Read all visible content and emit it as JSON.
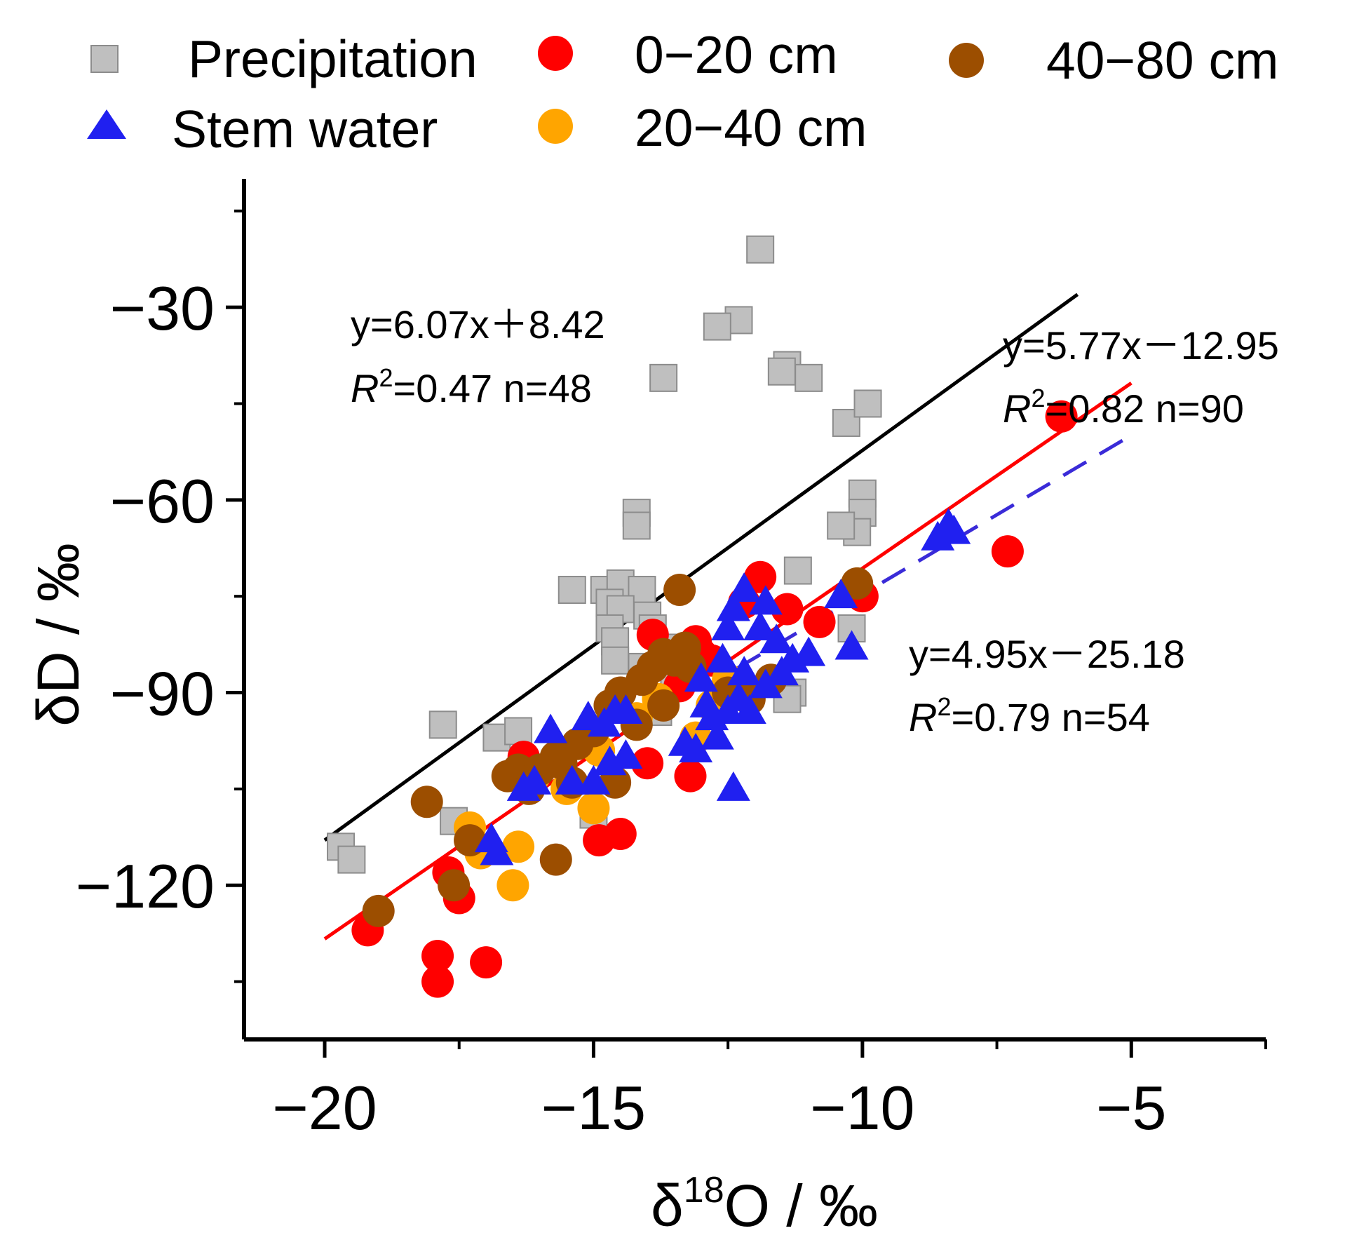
{
  "chart_data": {
    "type": "scatter",
    "xlabel": {
      "prefix": "δ",
      "sup": "18",
      "suffix": "O / ‰"
    },
    "ylabel": "δD / ‰",
    "xlim": [
      -21.5,
      -2.5
    ],
    "ylim": [
      -144,
      -10
    ],
    "x_ticks": [
      {
        "value": -20,
        "label": "−20"
      },
      {
        "value": -15,
        "label": "−15"
      },
      {
        "value": -10,
        "label": "−10"
      },
      {
        "value": -5,
        "label": "−5"
      }
    ],
    "y_ticks": [
      {
        "value": -30,
        "label": "−30"
      },
      {
        "value": -60,
        "label": "−60"
      },
      {
        "value": -90,
        "label": "−90"
      },
      {
        "value": -120,
        "label": "−120"
      }
    ],
    "legend": [
      {
        "label": "Precipitation",
        "marker": "square",
        "color": "#bfbfbf"
      },
      {
        "label": "0−20 cm",
        "marker": "circle",
        "color": "#ff0000"
      },
      {
        "label": "40−80 cm",
        "marker": "circle",
        "color": "#9c4e00"
      },
      {
        "label": "Stem water",
        "marker": "triangle",
        "color": "#2020f0"
      },
      {
        "label": "20−40 cm",
        "marker": "circle",
        "color": "#ffa500"
      }
    ],
    "series": [
      {
        "name": "Precipitation",
        "marker": "square",
        "color": "#bfbfbf",
        "points": [
          [
            -11.9,
            -21
          ],
          [
            -12.3,
            -32
          ],
          [
            -12.7,
            -33
          ],
          [
            -13.7,
            -41
          ],
          [
            -11.4,
            -39
          ],
          [
            -11.5,
            -40
          ],
          [
            -11.0,
            -41
          ],
          [
            -10.3,
            -48
          ],
          [
            -9.9,
            -45
          ],
          [
            -10.0,
            -59
          ],
          [
            -10.0,
            -62
          ],
          [
            -10.1,
            -65
          ],
          [
            -10.4,
            -64
          ],
          [
            -14.2,
            -62
          ],
          [
            -14.2,
            -64
          ],
          [
            -11.2,
            -71
          ],
          [
            -15.4,
            -74
          ],
          [
            -14.8,
            -74
          ],
          [
            -14.5,
            -73
          ],
          [
            -14.1,
            -74
          ],
          [
            -14.7,
            -76
          ],
          [
            -14.5,
            -77
          ],
          [
            -14.0,
            -78
          ],
          [
            -13.9,
            -80
          ],
          [
            -14.7,
            -80
          ],
          [
            -14.6,
            -82
          ],
          [
            -14.6,
            -85
          ],
          [
            -13.7,
            -83
          ],
          [
            -14.1,
            -86
          ],
          [
            -13.5,
            -87
          ],
          [
            -11.3,
            -90
          ],
          [
            -10.2,
            -80
          ],
          [
            -17.8,
            -95
          ],
          [
            -16.8,
            -97
          ],
          [
            -16.4,
            -96
          ],
          [
            -15.1,
            -98
          ],
          [
            -17.6,
            -110
          ],
          [
            -19.7,
            -114
          ],
          [
            -19.5,
            -116
          ],
          [
            -15.0,
            -109
          ],
          [
            -13.8,
            -93
          ],
          [
            -11.4,
            -91
          ]
        ]
      },
      {
        "name": "0−20 cm",
        "marker": "circle",
        "color": "#ff0000",
        "points": [
          [
            -6.3,
            -47
          ],
          [
            -7.3,
            -68
          ],
          [
            -11.9,
            -72
          ],
          [
            -11.4,
            -77
          ],
          [
            -10.8,
            -79
          ],
          [
            -10.0,
            -75
          ],
          [
            -13.9,
            -81
          ],
          [
            -13.1,
            -82
          ],
          [
            -12.2,
            -76
          ],
          [
            -12.8,
            -85
          ],
          [
            -13.4,
            -89
          ],
          [
            -14.0,
            -101
          ],
          [
            -13.2,
            -103
          ],
          [
            -14.9,
            -113
          ],
          [
            -14.5,
            -112
          ],
          [
            -17.5,
            -122
          ],
          [
            -17.7,
            -118
          ],
          [
            -19.2,
            -127
          ],
          [
            -17.9,
            -131
          ],
          [
            -17.9,
            -135
          ],
          [
            -17.0,
            -132
          ],
          [
            -16.3,
            -100
          ],
          [
            -13.0,
            -84
          ]
        ]
      },
      {
        "name": "20−40 cm",
        "marker": "circle",
        "color": "#ffa500",
        "points": [
          [
            -17.3,
            -111
          ],
          [
            -17.1,
            -115
          ],
          [
            -16.4,
            -114
          ],
          [
            -16.5,
            -120
          ],
          [
            -15.0,
            -108
          ],
          [
            -13.1,
            -97
          ],
          [
            -13.8,
            -91
          ],
          [
            -12.5,
            -88
          ],
          [
            -14.2,
            -94
          ],
          [
            -15.5,
            -105
          ],
          [
            -16.1,
            -103
          ],
          [
            -12.8,
            -92
          ],
          [
            -14.9,
            -99
          ]
        ]
      },
      {
        "name": "40−80 cm",
        "marker": "circle",
        "color": "#9c4e00",
        "points": [
          [
            -19.0,
            -124
          ],
          [
            -18.1,
            -107
          ],
          [
            -17.6,
            -120
          ],
          [
            -17.3,
            -113
          ],
          [
            -16.6,
            -103
          ],
          [
            -16.4,
            -102
          ],
          [
            -16.2,
            -105
          ],
          [
            -15.7,
            -100
          ],
          [
            -15.6,
            -101
          ],
          [
            -15.4,
            -104
          ],
          [
            -15.3,
            -98
          ],
          [
            -15.7,
            -116
          ],
          [
            -14.6,
            -104
          ],
          [
            -14.7,
            -92
          ],
          [
            -14.5,
            -90
          ],
          [
            -14.1,
            -88
          ],
          [
            -13.9,
            -86
          ],
          [
            -13.7,
            -84
          ],
          [
            -13.5,
            -85
          ],
          [
            -13.3,
            -83
          ],
          [
            -13.2,
            -86
          ],
          [
            -13.4,
            -74
          ],
          [
            -12.5,
            -90
          ],
          [
            -12.1,
            -91
          ],
          [
            -11.7,
            -88
          ],
          [
            -10.1,
            -73
          ],
          [
            -13.7,
            -92
          ],
          [
            -15.0,
            -96
          ],
          [
            -16.0,
            -102
          ],
          [
            -14.2,
            -95
          ]
        ]
      },
      {
        "name": "Stem water",
        "marker": "triangle",
        "color": "#2020f0",
        "points": [
          [
            -8.6,
            -66
          ],
          [
            -8.4,
            -64
          ],
          [
            -8.3,
            -65
          ],
          [
            -10.4,
            -75
          ],
          [
            -10.2,
            -83
          ],
          [
            -11.0,
            -84
          ],
          [
            -11.3,
            -85
          ],
          [
            -11.5,
            -87
          ],
          [
            -11.6,
            -82
          ],
          [
            -11.8,
            -76
          ],
          [
            -11.9,
            -80
          ],
          [
            -12.2,
            -74
          ],
          [
            -12.4,
            -77
          ],
          [
            -12.5,
            -80
          ],
          [
            -12.2,
            -87
          ],
          [
            -12.3,
            -91
          ],
          [
            -12.5,
            -93
          ],
          [
            -12.8,
            -94
          ],
          [
            -12.9,
            -92
          ],
          [
            -13.1,
            -99
          ],
          [
            -13.3,
            -98
          ],
          [
            -12.7,
            -97
          ],
          [
            -12.4,
            -105
          ],
          [
            -12.1,
            -93
          ],
          [
            -11.8,
            -89
          ],
          [
            -14.4,
            -93
          ],
          [
            -14.6,
            -93
          ],
          [
            -14.8,
            -95
          ],
          [
            -15.1,
            -94
          ],
          [
            -14.7,
            -101
          ],
          [
            -14.4,
            -100
          ],
          [
            -15.0,
            -104
          ],
          [
            -15.4,
            -104
          ],
          [
            -15.8,
            -96
          ],
          [
            -16.1,
            -104
          ],
          [
            -16.3,
            -105
          ],
          [
            -16.9,
            -113
          ],
          [
            -16.8,
            -115
          ],
          [
            -13.0,
            -88
          ],
          [
            -12.6,
            -85
          ]
        ]
      }
    ],
    "fits": [
      {
        "equation": "y=6.07x＋8.42",
        "r2_text": "=0.47 n=48",
        "slope": 6.07,
        "intercept": 8.42,
        "x_range": [
          -20,
          -6
        ],
        "color": "#000000",
        "style": "solid"
      },
      {
        "equation": "y=5.77x－12.95",
        "r2_text": "=0.82 n=90",
        "slope": 5.77,
        "intercept": -12.95,
        "x_range": [
          -20,
          -5
        ],
        "color": "#ff0000",
        "style": "solid"
      },
      {
        "equation": "y=4.95x－25.18",
        "r2_text": "=0.79 n=54",
        "slope": 4.95,
        "intercept": -25.18,
        "x_range": [
          -13,
          -5
        ],
        "color": "#3a2bd8",
        "style": "dashed"
      }
    ],
    "r2_symbol": "R",
    "r2_sup": "2",
    "grid": false,
    "legend_position": "top"
  }
}
